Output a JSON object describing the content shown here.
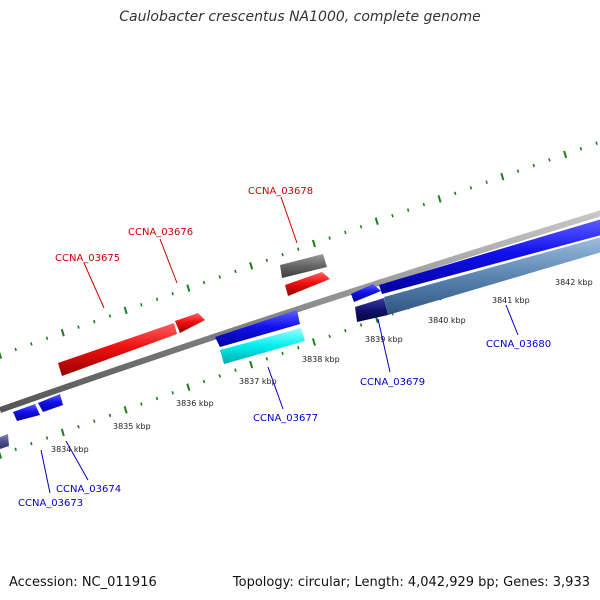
{
  "title": "Caulobacter crescentus NA1000, complete genome",
  "footer": {
    "accession": "Accession: NC_011916",
    "summary": "Topology: circular; Length: 4,042,929 bp; Genes: 3,933"
  },
  "colors": {
    "forward_label": "#cc0000",
    "reverse_label": "#0000cc",
    "tick": "#1a7f1a",
    "backbone": "#808080"
  },
  "tick_labels": [
    "3834 kbp",
    "3835 kbp",
    "3836 kbp",
    "3837 kbp",
    "3838 kbp",
    "3839 kbp",
    "3840 kbp",
    "3841 kbp",
    "3842 kbp"
  ],
  "gene_labels": {
    "forward": [
      "CCNA_03675",
      "CCNA_03676",
      "CCNA_03678"
    ],
    "reverse": [
      "CCNA_03673",
      "CCNA_03674",
      "CCNA_03677",
      "CCNA_03679",
      "CCNA_03680"
    ]
  }
}
